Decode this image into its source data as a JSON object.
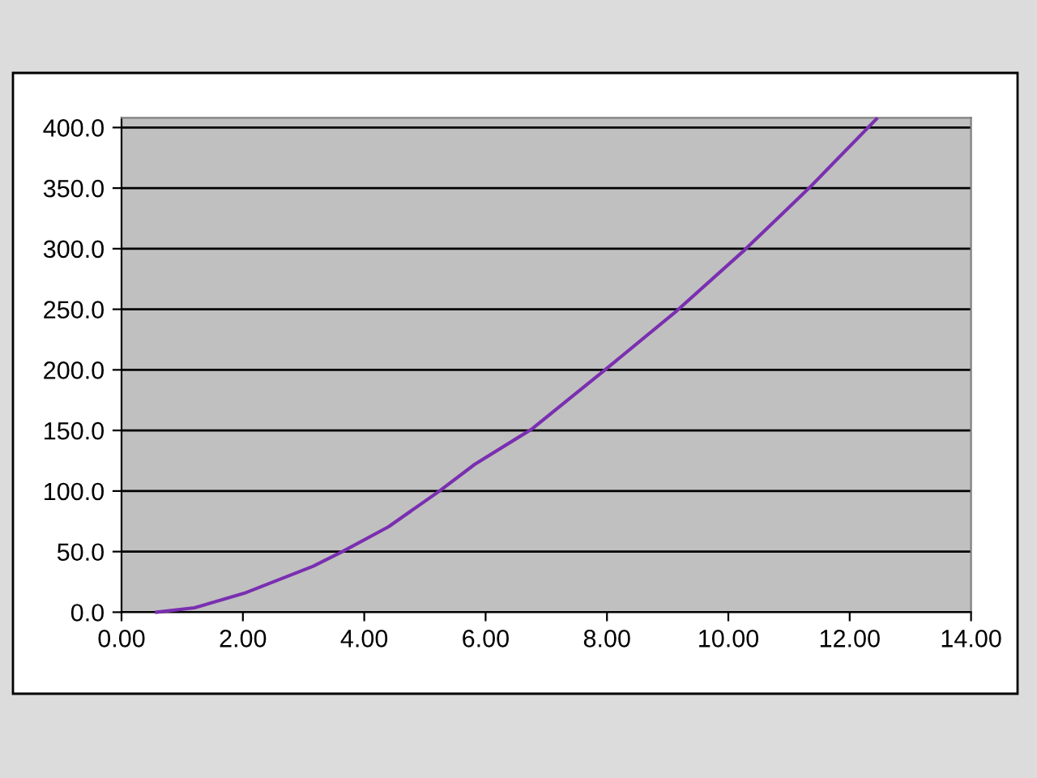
{
  "chart_data": {
    "type": "line",
    "x": [
      0.58,
      1.2,
      2.02,
      3.16,
      3.64,
      4.4,
      5.24,
      5.82,
      6.53,
      6.75,
      7.96,
      9.15,
      10.27,
      11.33,
      12.44
    ],
    "series": [
      {
        "color": "#7a2fb0",
        "values": [
          0,
          3.6,
          15.6,
          38,
          50,
          70.5,
          100,
          122,
          144,
          150.7,
          199.7,
          248.7,
          299,
          350,
          407
        ]
      }
    ],
    "xlim": [
      0,
      14
    ],
    "xticks": [
      {
        "value": 0,
        "label": "0.00"
      },
      {
        "value": 2,
        "label": "2.00"
      },
      {
        "value": 4,
        "label": "4.00"
      },
      {
        "value": 6,
        "label": "6.00"
      },
      {
        "value": 8,
        "label": "8.00"
      },
      {
        "value": 10,
        "label": "10.00"
      },
      {
        "value": 12,
        "label": "12.00"
      },
      {
        "value": 14,
        "label": "14.00"
      }
    ],
    "ylim": [
      0,
      408
    ],
    "yticks": [
      {
        "value": 0,
        "label": "0.0"
      },
      {
        "value": 50,
        "label": "50.0"
      },
      {
        "value": 100,
        "label": "100.0"
      },
      {
        "value": 150,
        "label": "150.0"
      },
      {
        "value": 200,
        "label": "200.0"
      },
      {
        "value": 250,
        "label": "250.0"
      },
      {
        "value": 300,
        "label": "300.0"
      },
      {
        "value": 350,
        "label": "350.0"
      },
      {
        "value": 400,
        "label": "400.0"
      }
    ],
    "grid": "y",
    "legend": false,
    "marker": "none",
    "line_style": "solid"
  }
}
